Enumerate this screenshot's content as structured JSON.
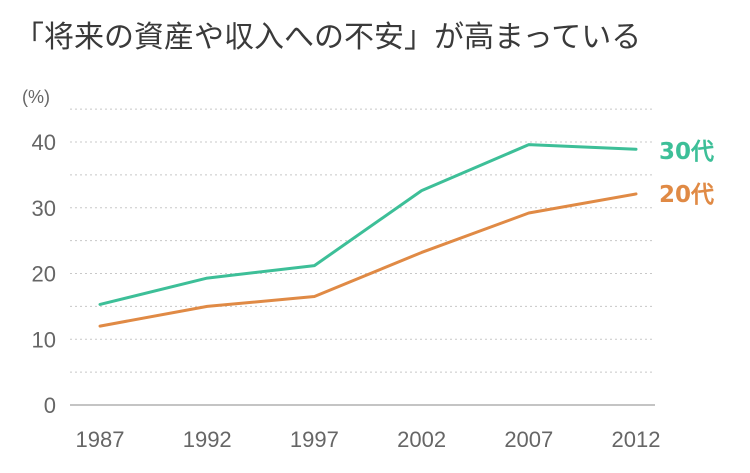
{
  "chart_data": {
    "type": "line",
    "title": "「将来の資産や収入への不安」が高まっている",
    "y_unit": "(%)",
    "x": [
      "1987",
      "1992",
      "1997",
      "2002",
      "2007",
      "2012"
    ],
    "ylim": [
      0,
      40
    ],
    "y_ticks": [
      "0",
      "10",
      "20",
      "30",
      "40"
    ],
    "grid": true,
    "series": [
      {
        "name": "30代",
        "color": "#3dbf98",
        "values": [
          15.3,
          19.3,
          21.2,
          32.6,
          39.6,
          38.9
        ]
      },
      {
        "name": "20代",
        "color": "#e08a45",
        "values": [
          12.0,
          15.0,
          16.5,
          23.2,
          29.2,
          32.1
        ]
      }
    ]
  },
  "colors": {
    "grid": "#c8c8c8",
    "axis": "#b0b0b0",
    "text": "#3a3a3a",
    "tick": "#666666"
  }
}
